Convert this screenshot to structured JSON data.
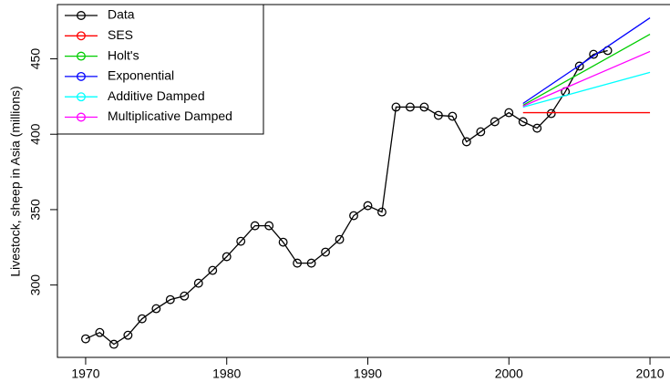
{
  "chart_data": {
    "type": "line",
    "y_label": "Livestock, sheep in Asia (millions)",
    "xlim": [
      1968,
      2012
    ],
    "ylim": [
      252,
      486
    ],
    "xticks": [
      1970,
      1980,
      1990,
      2000,
      2010
    ],
    "yticks": [
      300,
      350,
      400,
      450
    ],
    "legend": "top-left",
    "series": [
      {
        "name": "Data",
        "color": "#000000",
        "markers": true,
        "x": [
          1970,
          1971,
          1972,
          1973,
          1974,
          1975,
          1976,
          1977,
          1978,
          1979,
          1980,
          1981,
          1982,
          1983,
          1984,
          1985,
          1986,
          1987,
          1988,
          1989,
          1990,
          1991,
          1992,
          1993,
          1994,
          1995,
          1996,
          1997,
          1998,
          1999,
          2000,
          2001,
          2002,
          2003,
          2004,
          2005,
          2006,
          2007
        ],
        "values": [
          264.3,
          268.5,
          260.7,
          266.7,
          277.6,
          284.3,
          290.3,
          292.7,
          301.2,
          309.7,
          318.8,
          329.0,
          339.3,
          339.3,
          328.4,
          314.5,
          314.5,
          321.8,
          330.2,
          346.0,
          352.6,
          348.4,
          418.0,
          418.0,
          418.0,
          412.5,
          411.9,
          395.0,
          401.6,
          408.3,
          414.3,
          408.3,
          404.0,
          413.7,
          428.2,
          445.2,
          453.0,
          455.5
        ]
      },
      {
        "name": "SES",
        "color": "#ff0000",
        "x": [
          2001,
          2010
        ],
        "values": [
          414.3,
          414.3
        ]
      },
      {
        "name": "Holt's",
        "color": "#00cd00",
        "x": [
          2001,
          2010
        ],
        "values": [
          419.2,
          466.3
        ]
      },
      {
        "name": "Exponential",
        "color": "#0000ff",
        "x": [
          2001,
          2010
        ],
        "values": [
          420.4,
          477.2
        ]
      },
      {
        "name": "Additive Damped",
        "color": "#00ffff",
        "x": [
          2001,
          2010
        ],
        "values": [
          418.0,
          441.0
        ]
      },
      {
        "name": "Multiplicative Damped",
        "color": "#ff00ff",
        "x": [
          2001,
          2010
        ],
        "values": [
          418.6,
          454.9
        ]
      }
    ]
  }
}
